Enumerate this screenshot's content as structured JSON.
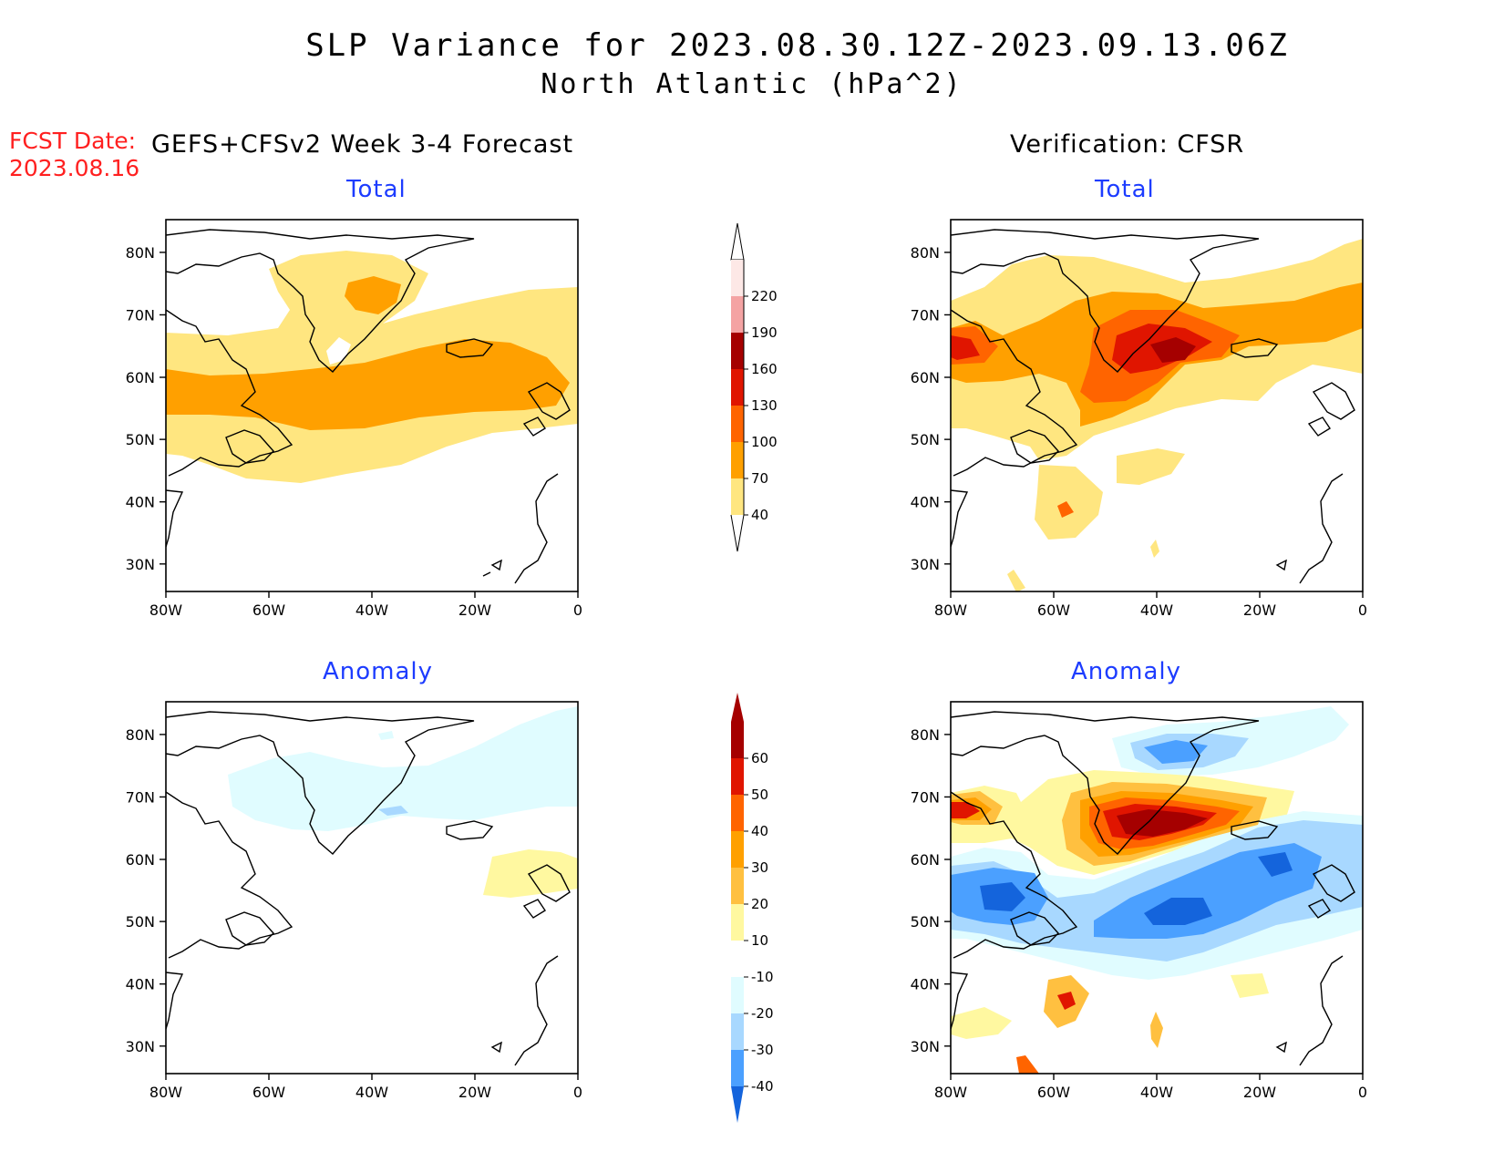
{
  "header": {
    "title_line1": "SLP Variance for 2023.08.30.12Z-2023.09.13.06Z",
    "title_line2": "North Atlantic (hPa^2)",
    "fcst_label": "FCST Date:",
    "fcst_date": "2023.08.16",
    "left_column": "GEFS+CFSv2 Week 3-4 Forecast",
    "right_column": "Verification: CFSR"
  },
  "panels": {
    "top_left_title": "Total",
    "top_right_title": "Total",
    "bottom_left_title": "Anomaly",
    "bottom_right_title": "Anomaly"
  },
  "axes": {
    "lat_ticks": [
      "80N",
      "70N",
      "60N",
      "50N",
      "40N",
      "30N"
    ],
    "lon_ticks": [
      "80W",
      "60W",
      "40W",
      "20W",
      "0"
    ]
  },
  "total_colorbar": {
    "labels": [
      "220",
      "190",
      "160",
      "130",
      "100",
      "70",
      "40"
    ],
    "colors": [
      "#fde8e6",
      "#f4a3a3",
      "#a50000",
      "#e01500",
      "#ff6400",
      "#ffa000",
      "#ffe680"
    ]
  },
  "anomaly_colorbar": {
    "labels": [
      "60",
      "50",
      "40",
      "30",
      "20",
      "10",
      "-10",
      "-20",
      "-30",
      "-40"
    ],
    "colors": [
      "#a50000",
      "#e01500",
      "#ff6400",
      "#ffa000",
      "#ffc040",
      "#fff8a0",
      "#ffffff",
      "#e0fcff",
      "#a8d8ff",
      "#4ba0ff",
      "#1464dc"
    ]
  }
}
